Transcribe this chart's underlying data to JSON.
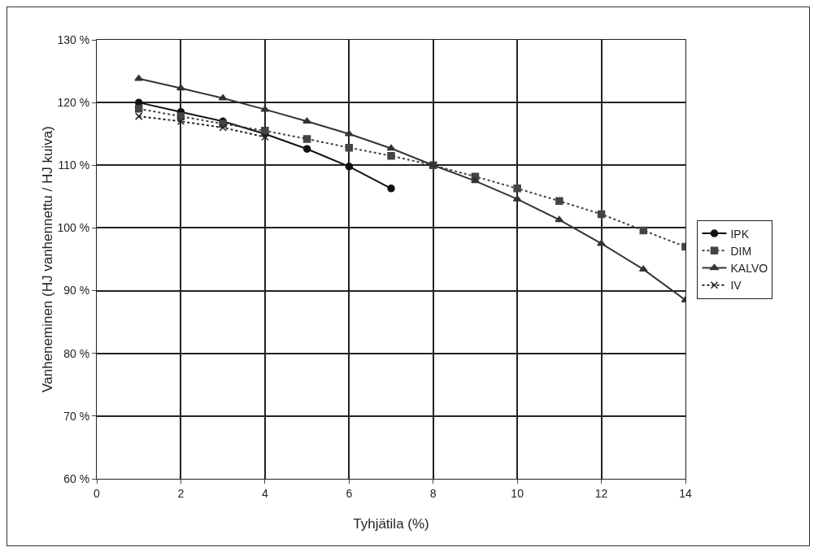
{
  "chart_data": {
    "type": "line",
    "xlabel": "Tyhjätila (%)",
    "ylabel": "Vanheneminen (HJ vanhennettu / HJ kuiva)",
    "x": [
      1,
      2,
      3,
      4,
      5,
      6,
      7,
      8,
      9,
      10,
      11,
      12,
      13,
      14
    ],
    "series": [
      {
        "name": "IPK",
        "color": "#111111",
        "marker": "circle",
        "line_style": "solid",
        "values": [
          120,
          118.5,
          117,
          115,
          112.6,
          109.8,
          106.3,
          null,
          null,
          null,
          null,
          null,
          null,
          null
        ]
      },
      {
        "name": "DIM",
        "color": "#444444",
        "marker": "square",
        "line_style": "dotted",
        "values": [
          119,
          117.8,
          116.6,
          115.5,
          114.2,
          112.8,
          111.5,
          110,
          108.2,
          106.3,
          104.3,
          102.2,
          99.6,
          97
        ]
      },
      {
        "name": "KALVO",
        "color": "#333333",
        "marker": "triangle",
        "line_style": "solid",
        "values": [
          123.8,
          122.3,
          120.7,
          118.9,
          117,
          115,
          112.7,
          110,
          107.5,
          104.6,
          101.3,
          97.5,
          93.4,
          88.5
        ]
      },
      {
        "name": "IV",
        "color": "#222222",
        "marker": "cross",
        "line_style": "dotted",
        "values": [
          117.8,
          117,
          116,
          114.5,
          null,
          null,
          null,
          null,
          null,
          null,
          null,
          null,
          null,
          null
        ]
      }
    ],
    "xlim": [
      0,
      14
    ],
    "xticks": [
      0,
      2,
      4,
      6,
      8,
      10,
      12,
      14
    ],
    "ylim": [
      60,
      130
    ],
    "yticks": [
      {
        "value": 60,
        "label": "60 %"
      },
      {
        "value": 70,
        "label": "70 %"
      },
      {
        "value": 80,
        "label": "80 %"
      },
      {
        "value": 90,
        "label": "90 %"
      },
      {
        "value": 100,
        "label": "100 %"
      },
      {
        "value": 110,
        "label": "110 %"
      },
      {
        "value": 120,
        "label": "120 %"
      },
      {
        "value": 130,
        "label": "130 %"
      }
    ],
    "grid": true,
    "legend": "right"
  }
}
